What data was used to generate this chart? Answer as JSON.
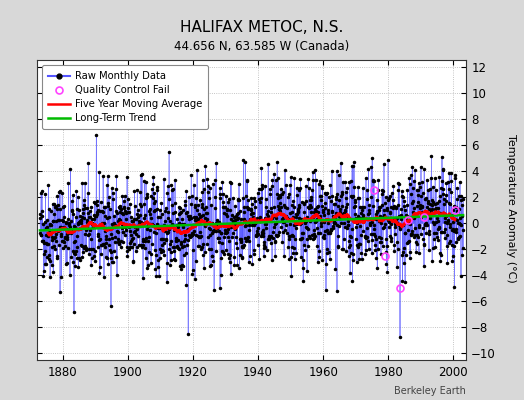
{
  "title": "HALIFAX METOC, N.S.",
  "subtitle": "44.656 N, 63.585 W (Canada)",
  "ylabel": "Temperature Anomaly (°C)",
  "watermark": "Berkeley Earth",
  "year_start": 1873,
  "year_end": 2003,
  "ylim": [
    -10.5,
    12.5
  ],
  "yticks": [
    -10,
    -8,
    -6,
    -4,
    -2,
    0,
    2,
    4,
    6,
    8,
    10,
    12
  ],
  "xticks": [
    1880,
    1900,
    1920,
    1940,
    1960,
    1980,
    2000
  ],
  "bg_color": "#d8d8d8",
  "plot_bg_color": "#ffffff",
  "line_color": "#5555ff",
  "marker_color": "#000000",
  "qc_color": "#ff44ff",
  "moving_avg_color": "#ff0000",
  "trend_color": "#00bb00",
  "seed": 42,
  "n_months": 1572,
  "moving_avg_window": 60
}
